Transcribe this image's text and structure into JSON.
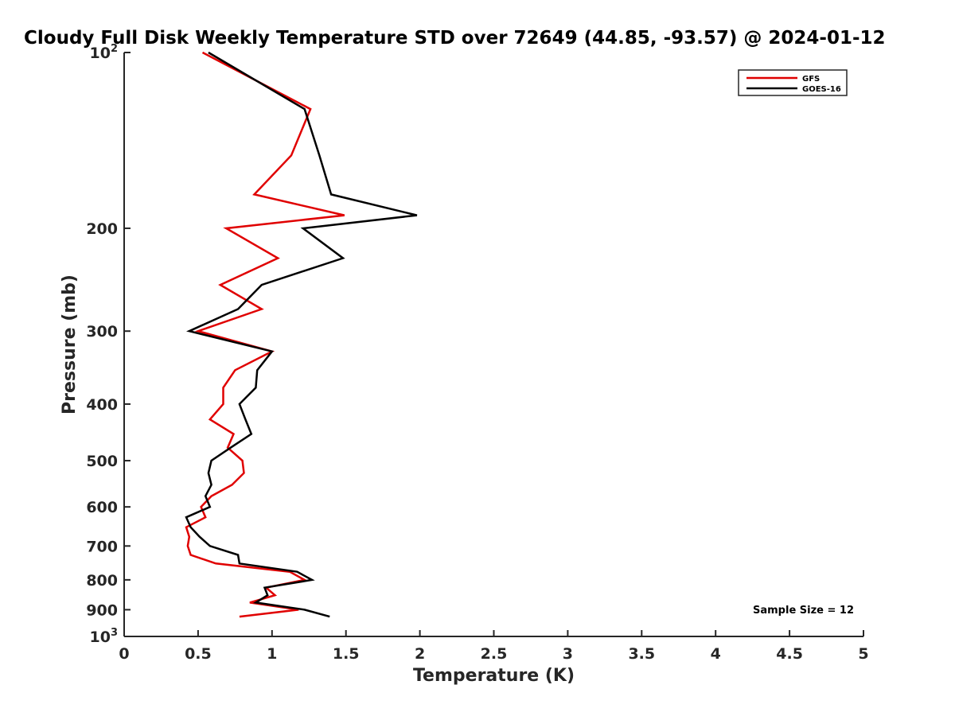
{
  "chart_data": {
    "type": "line",
    "title": "Cloudy Full Disk Weekly Temperature STD over 72649 (44.85, -93.57) @ 2024-01-12",
    "xlabel": "Temperature (K)",
    "ylabel": "Pressure (mb)",
    "xlim": [
      0,
      5
    ],
    "ylim": [
      100,
      1000
    ],
    "y_scale": "log",
    "y_reversed": true,
    "grid": false,
    "legend_position": "top-right",
    "x_ticks": [
      {
        "value": 0,
        "label": "0"
      },
      {
        "value": 0.5,
        "label": "0.5"
      },
      {
        "value": 1,
        "label": "1"
      },
      {
        "value": 1.5,
        "label": "1.5"
      },
      {
        "value": 2,
        "label": "2"
      },
      {
        "value": 2.5,
        "label": "2.5"
      },
      {
        "value": 3,
        "label": "3"
      },
      {
        "value": 3.5,
        "label": "3.5"
      },
      {
        "value": 4,
        "label": "4"
      },
      {
        "value": 4.5,
        "label": "4.5"
      },
      {
        "value": 5,
        "label": "5"
      }
    ],
    "y_ticks": [
      {
        "value": 100,
        "base": "10",
        "exp": "2"
      },
      {
        "value": 200,
        "label": "200"
      },
      {
        "value": 300,
        "label": "300"
      },
      {
        "value": 400,
        "label": "400"
      },
      {
        "value": 500,
        "label": "500"
      },
      {
        "value": 600,
        "label": "600"
      },
      {
        "value": 700,
        "label": "700"
      },
      {
        "value": 800,
        "label": "800"
      },
      {
        "value": 900,
        "label": "900"
      },
      {
        "value": 1000,
        "base": "10",
        "exp": "3"
      }
    ],
    "series": [
      {
        "name": "GFS",
        "color": "#e00000",
        "points": [
          {
            "x": 0.53,
            "p": 100
          },
          {
            "x": 1.26,
            "p": 125
          },
          {
            "x": 1.13,
            "p": 150
          },
          {
            "x": 0.88,
            "p": 175
          },
          {
            "x": 1.49,
            "p": 190
          },
          {
            "x": 0.69,
            "p": 200
          },
          {
            "x": 1.04,
            "p": 225
          },
          {
            "x": 0.65,
            "p": 250
          },
          {
            "x": 0.93,
            "p": 275
          },
          {
            "x": 0.5,
            "p": 300
          },
          {
            "x": 1.0,
            "p": 325
          },
          {
            "x": 0.75,
            "p": 350
          },
          {
            "x": 0.67,
            "p": 375
          },
          {
            "x": 0.67,
            "p": 400
          },
          {
            "x": 0.58,
            "p": 425
          },
          {
            "x": 0.74,
            "p": 450
          },
          {
            "x": 0.7,
            "p": 475
          },
          {
            "x": 0.8,
            "p": 500
          },
          {
            "x": 0.81,
            "p": 525
          },
          {
            "x": 0.73,
            "p": 550
          },
          {
            "x": 0.59,
            "p": 575
          },
          {
            "x": 0.52,
            "p": 600
          },
          {
            "x": 0.55,
            "p": 625
          },
          {
            "x": 0.42,
            "p": 650
          },
          {
            "x": 0.44,
            "p": 675
          },
          {
            "x": 0.43,
            "p": 700
          },
          {
            "x": 0.45,
            "p": 725
          },
          {
            "x": 0.62,
            "p": 750
          },
          {
            "x": 1.12,
            "p": 775
          },
          {
            "x": 1.22,
            "p": 800
          },
          {
            "x": 0.96,
            "p": 825
          },
          {
            "x": 1.02,
            "p": 850
          },
          {
            "x": 0.85,
            "p": 875
          },
          {
            "x": 1.18,
            "p": 900
          },
          {
            "x": 0.78,
            "p": 925
          }
        ]
      },
      {
        "name": "GOES-16",
        "color": "#000000",
        "points": [
          {
            "x": 0.57,
            "p": 100
          },
          {
            "x": 1.22,
            "p": 125
          },
          {
            "x": 1.32,
            "p": 150
          },
          {
            "x": 1.4,
            "p": 175
          },
          {
            "x": 1.98,
            "p": 190
          },
          {
            "x": 1.21,
            "p": 200
          },
          {
            "x": 1.48,
            "p": 225
          },
          {
            "x": 0.93,
            "p": 250
          },
          {
            "x": 0.77,
            "p": 275
          },
          {
            "x": 0.44,
            "p": 300
          },
          {
            "x": 1.0,
            "p": 325
          },
          {
            "x": 0.9,
            "p": 350
          },
          {
            "x": 0.89,
            "p": 375
          },
          {
            "x": 0.78,
            "p": 400
          },
          {
            "x": 0.82,
            "p": 425
          },
          {
            "x": 0.86,
            "p": 450
          },
          {
            "x": 0.72,
            "p": 475
          },
          {
            "x": 0.59,
            "p": 500
          },
          {
            "x": 0.57,
            "p": 525
          },
          {
            "x": 0.59,
            "p": 550
          },
          {
            "x": 0.55,
            "p": 575
          },
          {
            "x": 0.58,
            "p": 600
          },
          {
            "x": 0.42,
            "p": 625
          },
          {
            "x": 0.45,
            "p": 650
          },
          {
            "x": 0.51,
            "p": 675
          },
          {
            "x": 0.58,
            "p": 700
          },
          {
            "x": 0.77,
            "p": 725
          },
          {
            "x": 0.78,
            "p": 750
          },
          {
            "x": 1.17,
            "p": 775
          },
          {
            "x": 1.27,
            "p": 800
          },
          {
            "x": 0.95,
            "p": 825
          },
          {
            "x": 0.97,
            "p": 850
          },
          {
            "x": 0.89,
            "p": 875
          },
          {
            "x": 1.22,
            "p": 900
          },
          {
            "x": 1.39,
            "p": 925
          }
        ]
      }
    ],
    "annotation": "Sample Size = 12"
  }
}
